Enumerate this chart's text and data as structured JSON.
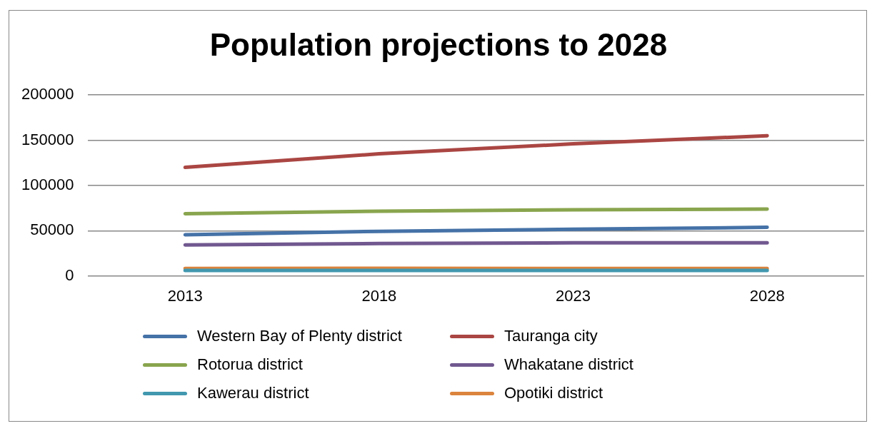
{
  "chart_data": {
    "type": "line",
    "title": "Population projections to 2028",
    "categories": [
      "2013",
      "2018",
      "2023",
      "2028"
    ],
    "series": [
      {
        "name": "Western Bay of Plenty district",
        "color": "#4572a7",
        "values": [
          45500,
          49300,
          51500,
          53700
        ]
      },
      {
        "name": "Tauranga city",
        "color": "#aa4643",
        "values": [
          120000,
          135000,
          146000,
          155000
        ]
      },
      {
        "name": "Rotorua district",
        "color": "#89a54e",
        "values": [
          68700,
          71600,
          73100,
          73900
        ]
      },
      {
        "name": "Whakatane district",
        "color": "#71588f",
        "values": [
          34300,
          35800,
          36500,
          36500
        ]
      },
      {
        "name": "Kawerau district",
        "color": "#4198af",
        "values": [
          6000,
          6000,
          6000,
          6000
        ]
      },
      {
        "name": "Opotiki district",
        "color": "#db843d",
        "values": [
          8200,
          8300,
          8200,
          8200
        ]
      }
    ],
    "ylim": [
      0,
      200000
    ],
    "yticks": [
      0,
      50000,
      100000,
      150000,
      200000
    ],
    "grid": "y",
    "legend": "bottom",
    "marker": "none",
    "line_style": "solid"
  }
}
